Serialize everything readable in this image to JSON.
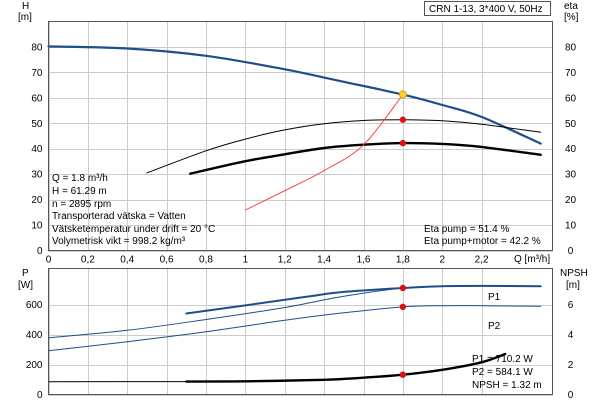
{
  "header": {
    "box_text": "CRN 1-13, 3*400 V, 50Hz",
    "h_axis_title": "H",
    "h_axis_unit": "[m]",
    "eta_axis_title": "eta",
    "eta_axis_unit": "[%]"
  },
  "info": {
    "lines": [
      "Q = 1.8 m³/h",
      "H = 61.29 m",
      "n = 2895 rpm",
      "Transporterad vätska = Vatten",
      "Vätsketemperatur under drift = 20 °C",
      "Volymetrisk vikt = 998.2 kg/m³"
    ],
    "eta_pump": "Eta pump = 51.4 %",
    "eta_pump_motor": "Eta pump+motor = 42.2 %"
  },
  "lower_labels": {
    "p1_text": "P1 = 710.2 W",
    "p2_text": "P2 = 584.1 W",
    "npsh_text": "NPSH = 1.32 m"
  },
  "colors": {
    "head_curve": "#1f4e8c",
    "eta_curve": "#000000",
    "system_curve": "#ff3333",
    "duty_point_fill": "#ffd21f",
    "duty_point_stroke": "#e08a00",
    "marker": "#dd1111",
    "p_curve": "#1f4e8c",
    "npsh_curve": "#000000"
  },
  "chart_data": [
    {
      "type": "line",
      "name": "upper",
      "x": {
        "label": "Q [m³/h]",
        "ticks": [
          0,
          0.2,
          0.4,
          0.6,
          0.8,
          1,
          1.2,
          1.4,
          1.6,
          1.8,
          2,
          2.2
        ],
        "tick_labels": [
          "0",
          "0,2",
          "0,4",
          "0,6",
          "0,8",
          "1",
          "1,2",
          "1,4",
          "1,6",
          "1,8",
          "2",
          "2,2"
        ],
        "range": [
          0,
          2.56
        ]
      },
      "y_left": {
        "ticks": [
          0,
          10,
          20,
          30,
          40,
          50,
          60,
          70,
          80
        ],
        "range": [
          0,
          90
        ]
      },
      "y_right": {
        "ticks": [
          0,
          10,
          20,
          30,
          40,
          50,
          60,
          70,
          80
        ],
        "range": [
          0,
          90
        ]
      },
      "series": [
        {
          "key": "head",
          "axis": "left",
          "style": "head",
          "points": [
            [
              0,
              80.2
            ],
            [
              0.4,
              79.4
            ],
            [
              0.8,
              76.5
            ],
            [
              1.2,
              71.2
            ],
            [
              1.5,
              66.3
            ],
            [
              1.8,
              61.29
            ],
            [
              2.0,
              57.2
            ],
            [
              2.2,
              52.5
            ],
            [
              2.5,
              42
            ]
          ]
        },
        {
          "key": "eta_pump",
          "axis": "right",
          "style": "eta_thin",
          "points": [
            [
              0.5,
              30.5
            ],
            [
              0.8,
              39.2
            ],
            [
              1.0,
              43.8
            ],
            [
              1.2,
              47.4
            ],
            [
              1.4,
              49.8
            ],
            [
              1.6,
              51.1
            ],
            [
              1.8,
              51.4
            ],
            [
              2.0,
              51.0
            ],
            [
              2.2,
              49.6
            ],
            [
              2.5,
              46.5
            ]
          ]
        },
        {
          "key": "eta_pump_motor",
          "axis": "right",
          "style": "eta_thick",
          "points": [
            [
              0.72,
              30.2
            ],
            [
              1.0,
              35.1
            ],
            [
              1.2,
              37.8
            ],
            [
              1.4,
              40.3
            ],
            [
              1.6,
              41.6
            ],
            [
              1.8,
              42.2
            ],
            [
              2.0,
              41.9
            ],
            [
              2.2,
              40.7
            ],
            [
              2.5,
              37.6
            ]
          ]
        },
        {
          "key": "system",
          "axis": "left",
          "style": "system",
          "points": [
            [
              1.0,
              15.9
            ],
            [
              1.2,
              23.5
            ],
            [
              1.4,
              31.4
            ],
            [
              1.6,
              41.5
            ],
            [
              1.8,
              61.29
            ]
          ]
        }
      ],
      "duty_points": [
        {
          "series": "head",
          "x": 1.8,
          "y": 61.29
        },
        {
          "series": "eta_pump",
          "x": 1.8,
          "y": 51.4
        },
        {
          "series": "eta_pump_motor",
          "x": 1.8,
          "y": 42.2
        }
      ]
    },
    {
      "type": "line",
      "name": "lower",
      "x": {
        "ticks": [
          0,
          0.2,
          0.4,
          0.6,
          0.8,
          1,
          1.2,
          1.4,
          1.6,
          1.8,
          2,
          2.2
        ],
        "range": [
          0,
          2.56
        ]
      },
      "y_left": {
        "title": "P",
        "unit": "[W]",
        "ticks": [
          0,
          200,
          400,
          600
        ],
        "range": [
          0,
          840
        ]
      },
      "y_right": {
        "title": "NPSH",
        "unit": "[m]",
        "ticks": [
          0,
          2,
          4,
          6
        ],
        "range": [
          0,
          8.4
        ]
      },
      "series": [
        {
          "key": "p1",
          "axis": "left",
          "style": "p_thin",
          "label": "P1",
          "points": [
            [
              0,
              378
            ],
            [
              0.4,
              428
            ],
            [
              0.8,
              500
            ],
            [
              1.2,
              580
            ],
            [
              1.5,
              655
            ],
            [
              1.8,
              710.2
            ],
            [
              2.0,
              722
            ],
            [
              2.2,
              724
            ],
            [
              2.5,
              722
            ]
          ]
        },
        {
          "key": "p1_bold",
          "axis": "left",
          "style": "p_thick",
          "points": [
            [
              0.7,
              540
            ],
            [
              1.0,
              594
            ],
            [
              1.3,
              650
            ],
            [
              1.5,
              684
            ],
            [
              1.8,
              710.2
            ],
            [
              2.0,
              722
            ],
            [
              2.2,
              724
            ],
            [
              2.5,
              722
            ]
          ]
        },
        {
          "key": "p2",
          "axis": "left",
          "style": "p_thin",
          "label": "P2",
          "points": [
            [
              0,
              292
            ],
            [
              0.4,
              352
            ],
            [
              0.8,
              418
            ],
            [
              1.2,
              495
            ],
            [
              1.5,
              545
            ],
            [
              1.8,
              584.1
            ],
            [
              2.0,
              592
            ],
            [
              2.2,
              592
            ],
            [
              2.5,
              588
            ]
          ]
        },
        {
          "key": "npsh_thin",
          "axis": "right",
          "style": "npsh_thin",
          "points": [
            [
              0,
              0.85
            ],
            [
              0.7,
              0.86
            ]
          ]
        },
        {
          "key": "npsh",
          "axis": "right",
          "style": "npsh_thick",
          "points": [
            [
              0.7,
              0.86
            ],
            [
              1.0,
              0.88
            ],
            [
              1.4,
              0.98
            ],
            [
              1.6,
              1.12
            ],
            [
              1.8,
              1.32
            ],
            [
              2.0,
              1.65
            ],
            [
              2.2,
              2.15
            ],
            [
              2.32,
              2.7
            ]
          ]
        }
      ],
      "duty_points": [
        {
          "series": "p1",
          "x": 1.8,
          "y": 710.2
        },
        {
          "series": "p2",
          "x": 1.8,
          "y": 584.1
        },
        {
          "series": "npsh",
          "x": 1.8,
          "y": 1.32
        }
      ]
    }
  ]
}
